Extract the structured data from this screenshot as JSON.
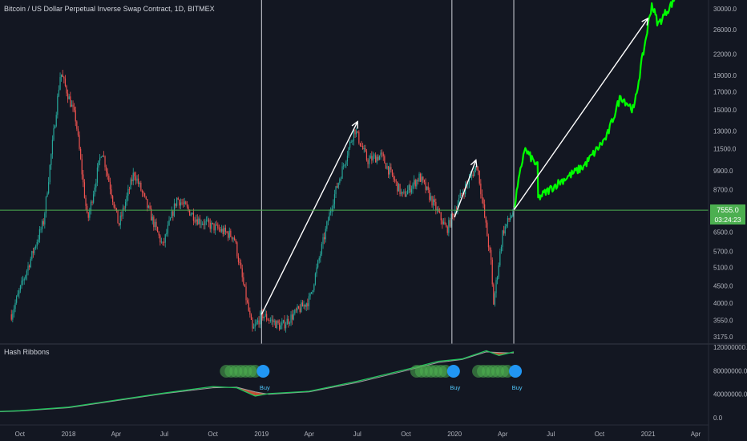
{
  "header": {
    "symbol_title": "Bitcoin / US Dollar Perpetual Inverse Swap Contract, 1D, BITMEX"
  },
  "price_axis": {
    "tick_labels": [
      "30000.0",
      "26000.0",
      "22000.0",
      "19000.0",
      "17000.0",
      "15000.0",
      "13000.0",
      "11500.0",
      "9900.0",
      "8700.0",
      "6500.0",
      "5700.0",
      "5100.0",
      "4500.0",
      "4000.0",
      "3550.0",
      "3175.0"
    ],
    "last_price_label": "7555.0",
    "countdown_label": "03:24:23"
  },
  "time_axis": {
    "tick_labels": [
      "Oct",
      "2018",
      "Apr",
      "Jul",
      "Oct",
      "2019",
      "Apr",
      "Jul",
      "Oct",
      "2020",
      "Apr",
      "Jul",
      "Oct",
      "2021",
      "Apr"
    ]
  },
  "indicator": {
    "name": "Hash Ribbons",
    "tick_labels": [
      "120000000.0",
      "80000000.0",
      "40000000.0",
      "0.0"
    ],
    "signals": [
      {
        "label": "Buy"
      },
      {
        "label": "Buy"
      },
      {
        "label": "Buy"
      }
    ]
  },
  "colors": {
    "background": "#131722",
    "candle_up": "#26a69a",
    "candle_down": "#ef5350",
    "projection": "#00ff00",
    "last_price_line": "#4caf50",
    "hash_fast": "#22c55e",
    "hash_slow": "#9e9e9e",
    "capitulation": "#e05a3a",
    "signal_dot": "#2196f3"
  },
  "chart_data": [
    {
      "type": "line",
      "title": "Bitcoin / US Dollar Perpetual Inverse Swap Contract, 1D, BITMEX",
      "scale": "log",
      "ylim": [
        3000,
        32000
      ],
      "x": [
        "2017-09-15",
        "2017-11-15",
        "2017-12-17",
        "2018-01-15",
        "2018-02-06",
        "2018-03-05",
        "2018-04-06",
        "2018-05-05",
        "2018-06-28",
        "2018-07-25",
        "2018-09-01",
        "2018-11-10",
        "2018-12-15",
        "2019-01-01",
        "2019-02-07",
        "2019-04-02",
        "2019-05-15",
        "2019-06-26",
        "2019-07-20",
        "2019-08-15",
        "2019-09-25",
        "2019-10-27",
        "2019-12-17",
        "2020-01-15",
        "2020-02-13",
        "2020-03-12",
        "2020-03-13",
        "2020-04-01",
        "2020-04-22"
      ],
      "series": [
        {
          "values": [
            3700,
            7000,
            19500,
            14000,
            7000,
            11500,
            6800,
            9800,
            5900,
            8200,
            7100,
            6300,
            3300,
            3700,
            3400,
            4100,
            8000,
            13200,
            10600,
            11000,
            8300,
            9500,
            6600,
            8500,
            10300,
            5000,
            3800,
            6500,
            7555
          ]
        }
      ],
      "last_price": 7555.0,
      "annotations": [
        {
          "type": "vertical_line",
          "x": "2019-01-01"
        },
        {
          "type": "vertical_line",
          "x": "2019-12-27"
        },
        {
          "type": "vertical_line",
          "x": "2020-04-22"
        },
        {
          "type": "arrow",
          "from": {
            "x": "2019-01-01",
            "y": 3700
          },
          "to": {
            "x": "2019-07-01",
            "y": 13800
          }
        },
        {
          "type": "arrow",
          "from": {
            "x": "2020-01-01",
            "y": 7200
          },
          "to": {
            "x": "2020-02-10",
            "y": 10600
          }
        },
        {
          "type": "arrow",
          "from": {
            "x": "2020-04-22",
            "y": 7555
          },
          "to": {
            "x": "2020-12-31",
            "y": 28000
          }
        },
        {
          "type": "projected_path",
          "x": [
            "2020-04-22",
            "2020-05-12",
            "2020-06-06",
            "2020-06-07",
            "2020-07-15",
            "2020-09-01",
            "2020-10-15",
            "2020-11-10",
            "2020-12-05",
            "2020-12-18",
            "2021-01-08",
            "2021-01-20",
            "2021-02-08",
            "2021-02-20"
          ],
          "values": [
            7555,
            11500,
            10200,
            8200,
            9100,
            10200,
            12500,
            16500,
            15000,
            20000,
            31000,
            27000,
            30000,
            32000
          ]
        }
      ]
    },
    {
      "type": "line",
      "title": "Hash Ribbons",
      "ylim": [
        -10000000,
        125000000
      ],
      "x": [
        "2017-06-01",
        "2017-10-01",
        "2018-01-01",
        "2018-04-01",
        "2018-07-01",
        "2018-10-01",
        "2018-11-15",
        "2018-12-20",
        "2019-01-15",
        "2019-04-01",
        "2019-07-01",
        "2019-10-01",
        "2019-12-01",
        "2020-01-15",
        "2020-03-01",
        "2020-03-25",
        "2020-04-22"
      ],
      "series": [
        {
          "name": "",
          "values": [
            8000000,
            12000000,
            18000000,
            30000000,
            42000000,
            53000000,
            51000000,
            37000000,
            41000000,
            45000000,
            62000000,
            82000000,
            96000000,
            100000000,
            114000000,
            106000000,
            112000000
          ]
        },
        {
          "name": "",
          "values": [
            7500000,
            11500000,
            17000000,
            29000000,
            41000000,
            51000000,
            52000000,
            44000000,
            40000000,
            44000000,
            60000000,
            80000000,
            94000000,
            99000000,
            112000000,
            111000000,
            110000000
          ]
        }
      ],
      "signal_dates": [
        "2019-01-01",
        "2019-12-27",
        "2020-04-22"
      ]
    }
  ]
}
